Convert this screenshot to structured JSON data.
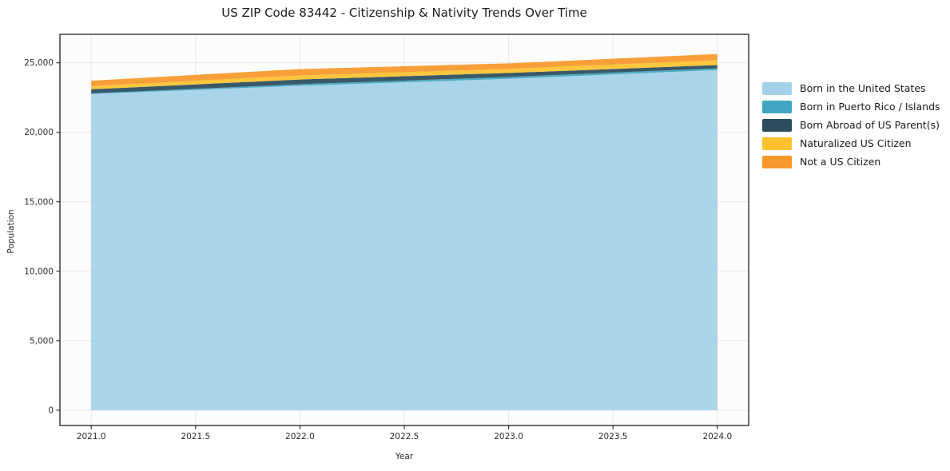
{
  "title": "US ZIP Code 83442 - Citizenship & Nativity Trends Over Time",
  "chart_data": {
    "type": "area",
    "stacked": true,
    "title": "US ZIP Code 83442 - Citizenship & Nativity Trends Over Time",
    "xlabel": "Year",
    "ylabel": "Population",
    "x": [
      2021,
      2022,
      2023,
      2024
    ],
    "series": [
      {
        "name": "Born in the United States",
        "color": "#a3d1e8",
        "values": [
          22750,
          23350,
          23850,
          24480
        ]
      },
      {
        "name": "Born in Puerto Rico / Islands",
        "color": "#3fa5c0",
        "values": [
          50,
          110,
          130,
          130
        ]
      },
      {
        "name": "Born Abroad of US Parent(s)",
        "color": "#2b4c5c",
        "values": [
          300,
          340,
          290,
          230
        ]
      },
      {
        "name": "Naturalized US Citizen",
        "color": "#fdc32e",
        "values": [
          230,
          290,
          290,
          350
        ]
      },
      {
        "name": "Not a US Citizen",
        "color": "#f8982a",
        "values": [
          380,
          460,
          400,
          440
        ]
      }
    ],
    "totals": [
      23710,
      24550,
      24960,
      25630
    ],
    "x_ticks": [
      2021.0,
      2021.5,
      2022.0,
      2022.5,
      2023.0,
      2023.5,
      2024.0
    ],
    "y_ticks": [
      0,
      5000,
      10000,
      15000,
      20000,
      25000
    ],
    "xlim": [
      2020.85,
      2024.15
    ],
    "ylim": [
      -1100,
      27050
    ],
    "grid": true,
    "legend_position": "right",
    "colors": {
      "background": "#ffffff",
      "plot_background": "#fcfcfc",
      "gridline": "#e7e7e7",
      "spine": "#1f1f1f"
    }
  }
}
